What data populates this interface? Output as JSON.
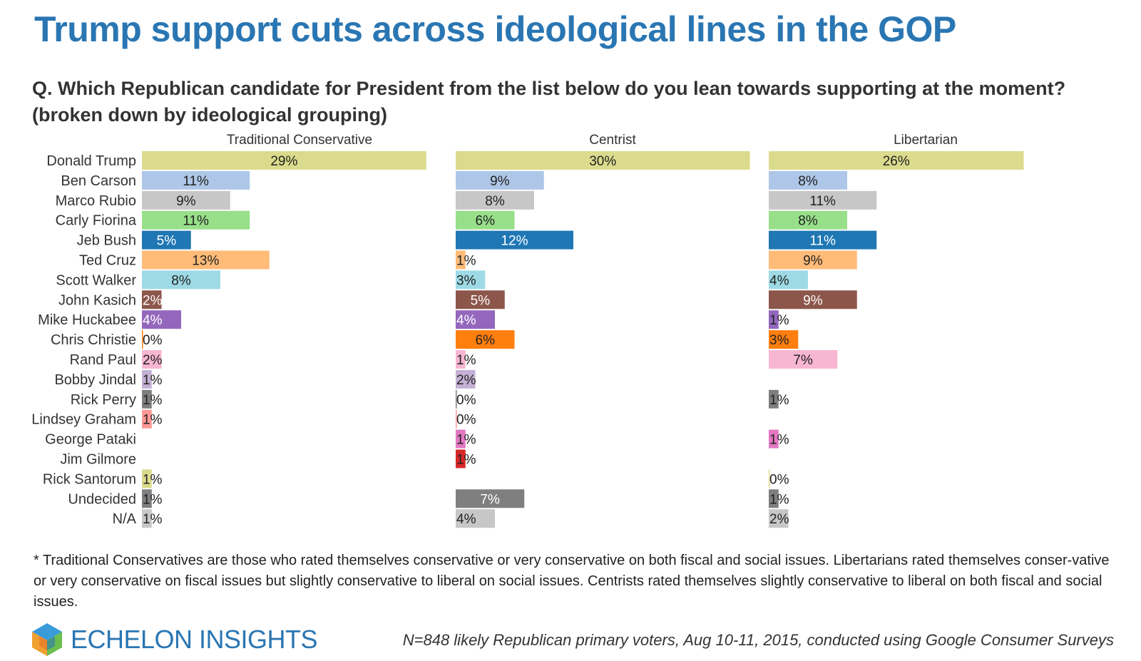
{
  "title": "Trump support cuts across ideological lines in the GOP",
  "question": "Q. Which Republican candidate for President from the list below do you lean towards supporting at the moment? (broken down by ideological grouping)",
  "footnote": "* Traditional Conservatives are those who rated themselves conservative or very conservative on both fiscal and social issues. Libertarians rated themselves conser-vative or very conservative on fiscal issues but slightly conservative to liberal on social issues. Centrists rated themselves slightly conservative to liberal on both fiscal and social issues.",
  "logo": {
    "text": "ECHELON INSIGHTS",
    "icon": "cube-logo-icon"
  },
  "source": "N=848 likely Republican primary voters, Aug 10-11, 2015, conducted using Google Consumer Surveys",
  "chart_data": {
    "type": "bar",
    "orientation": "horizontal",
    "unit": "%",
    "categories": [
      "Donald Trump",
      "Ben Carson",
      "Marco Rubio",
      "Carly Fiorina",
      "Jeb Bush",
      "Ted Cruz",
      "Scott Walker",
      "John Kasich",
      "Mike Huckabee",
      "Chris Christie",
      "Rand Paul",
      "Bobby Jindal",
      "Rick Perry",
      "Lindsey Graham",
      "George Pataki",
      "Jim Gilmore",
      "Rick Santorum",
      "Undecided",
      "N/A"
    ],
    "colors": [
      "#dbdb8d",
      "#aec7e8",
      "#c7c7c7",
      "#98df8a",
      "#1f77b4",
      "#ffbb78",
      "#9edae5",
      "#8c564b",
      "#9467bd",
      "#ff7f0e",
      "#f7b6d2",
      "#c5b0d5",
      "#7f7f7f",
      "#ff9896",
      "#e377c2",
      "#d62728",
      "#dbdb8d",
      "#7f7f7f",
      "#c7c7c7"
    ],
    "light_text_rows": [
      4,
      7,
      8,
      17
    ],
    "series": [
      {
        "name": "Traditional Conservative",
        "values": [
          29,
          11,
          9,
          11,
          5,
          13,
          8,
          2,
          4,
          0,
          2,
          1,
          1,
          1,
          null,
          null,
          1,
          1,
          1
        ]
      },
      {
        "name": "Centrist",
        "values": [
          30,
          9,
          8,
          6,
          12,
          1,
          3,
          5,
          4,
          6,
          1,
          2,
          0,
          0,
          1,
          1,
          null,
          7,
          4
        ]
      },
      {
        "name": "Libertarian",
        "values": [
          26,
          8,
          11,
          8,
          11,
          9,
          4,
          9,
          1,
          3,
          7,
          null,
          1,
          null,
          1,
          null,
          0,
          1,
          2
        ]
      }
    ]
  }
}
